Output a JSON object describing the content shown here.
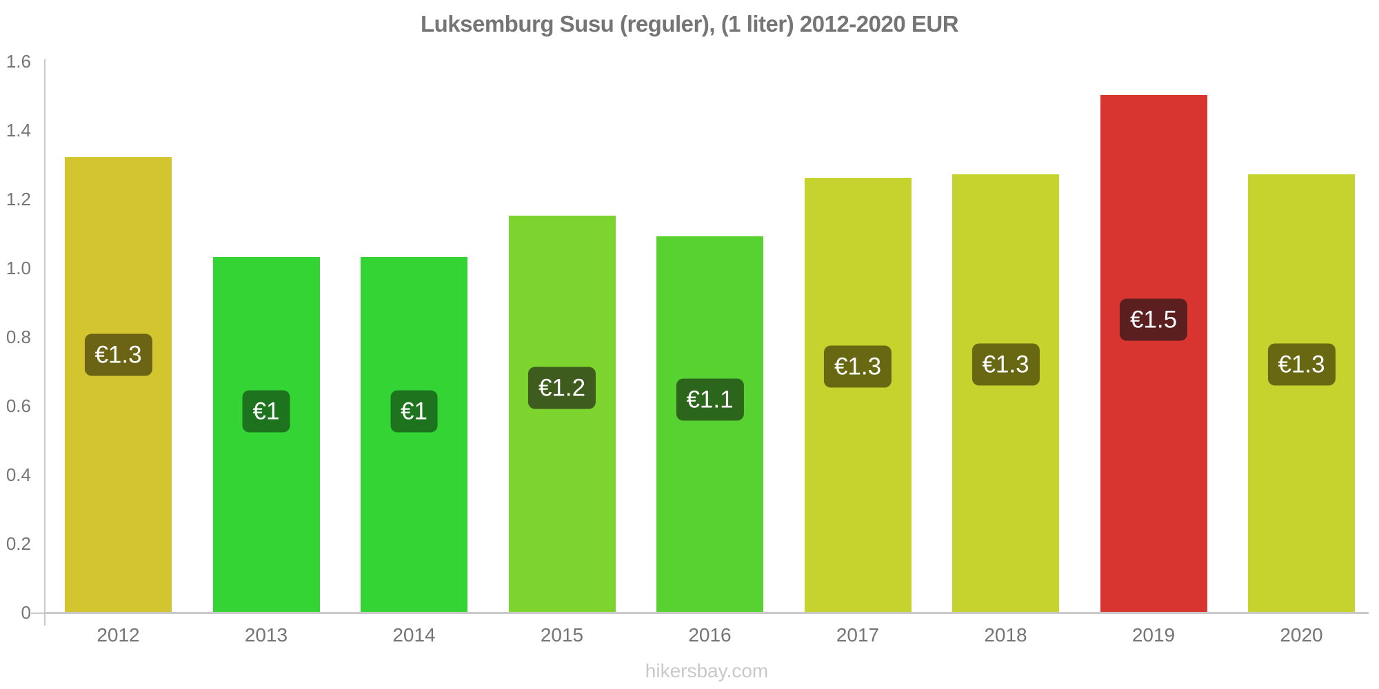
{
  "title": "Luksemburg Susu (reguler), (1 liter) 2012-2020 EUR",
  "footer": "hikersbay.com",
  "colors": {
    "background": "#ffffff",
    "title_text": "#757575",
    "axis_text": "#757575",
    "axis_line": "#c9c9c9",
    "footer_text": "#c9c9c9",
    "bar_label_text": "#ffffff"
  },
  "chart_data": {
    "type": "bar",
    "title": "Luksemburg Susu (reguler), (1 liter) 2012-2020 EUR",
    "xlabel": "",
    "ylabel": "",
    "categories": [
      "2012",
      "2013",
      "2014",
      "2015",
      "2016",
      "2017",
      "2018",
      "2019",
      "2020"
    ],
    "values": [
      1.32,
      1.03,
      1.03,
      1.15,
      1.09,
      1.26,
      1.27,
      1.5,
      1.27
    ],
    "point_labels": [
      "€1.3",
      "€1",
      "€1",
      "€1.2",
      "€1.1",
      "€1.3",
      "€1.3",
      "€1.5",
      "€1.3"
    ],
    "bar_colors": [
      "#d3c52f",
      "#33d433",
      "#33d433",
      "#7ed42f",
      "#58d230",
      "#c6d32e",
      "#c6d32e",
      "#d83531",
      "#c6d32e"
    ],
    "label_box_colors": [
      "#6b6414",
      "#1e741e",
      "#1e741e",
      "#3d5c1e",
      "#2c661c",
      "#686813",
      "#686813",
      "#5b1f1f",
      "#686813"
    ],
    "ylim": [
      0,
      1.6
    ],
    "ytick_labels": [
      "1.6",
      "1.4",
      "1.2",
      "1.0",
      "0.8",
      "0.6",
      "0.4",
      "0.2",
      "0"
    ],
    "grid": "off",
    "legend": "none",
    "currency": "EUR"
  }
}
